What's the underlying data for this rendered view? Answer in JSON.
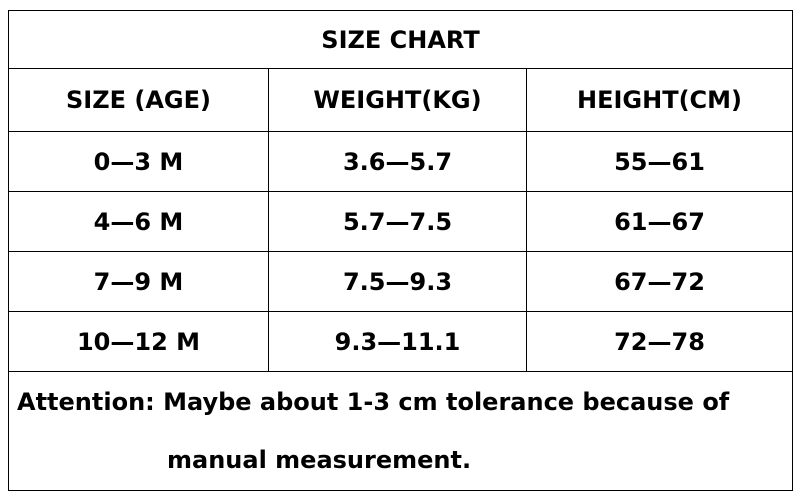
{
  "title": "SIZE CHART",
  "headers": [
    "SIZE (AGE)",
    "WEIGHT(KG)",
    "HEIGHT(CM)"
  ],
  "rows": [
    [
      "0—3 M",
      "3.6—5.7",
      "55—61"
    ],
    [
      "4—6 M",
      "5.7—7.5",
      "61—67"
    ],
    [
      "7—9 M",
      "7.5—9.3",
      "67—72"
    ],
    [
      "10—12 M",
      "9.3—11.1",
      "72—78"
    ]
  ],
  "note": {
    "line1": "Attention: Maybe about 1-3 cm tolerance because of",
    "line2": "manual measurement."
  }
}
